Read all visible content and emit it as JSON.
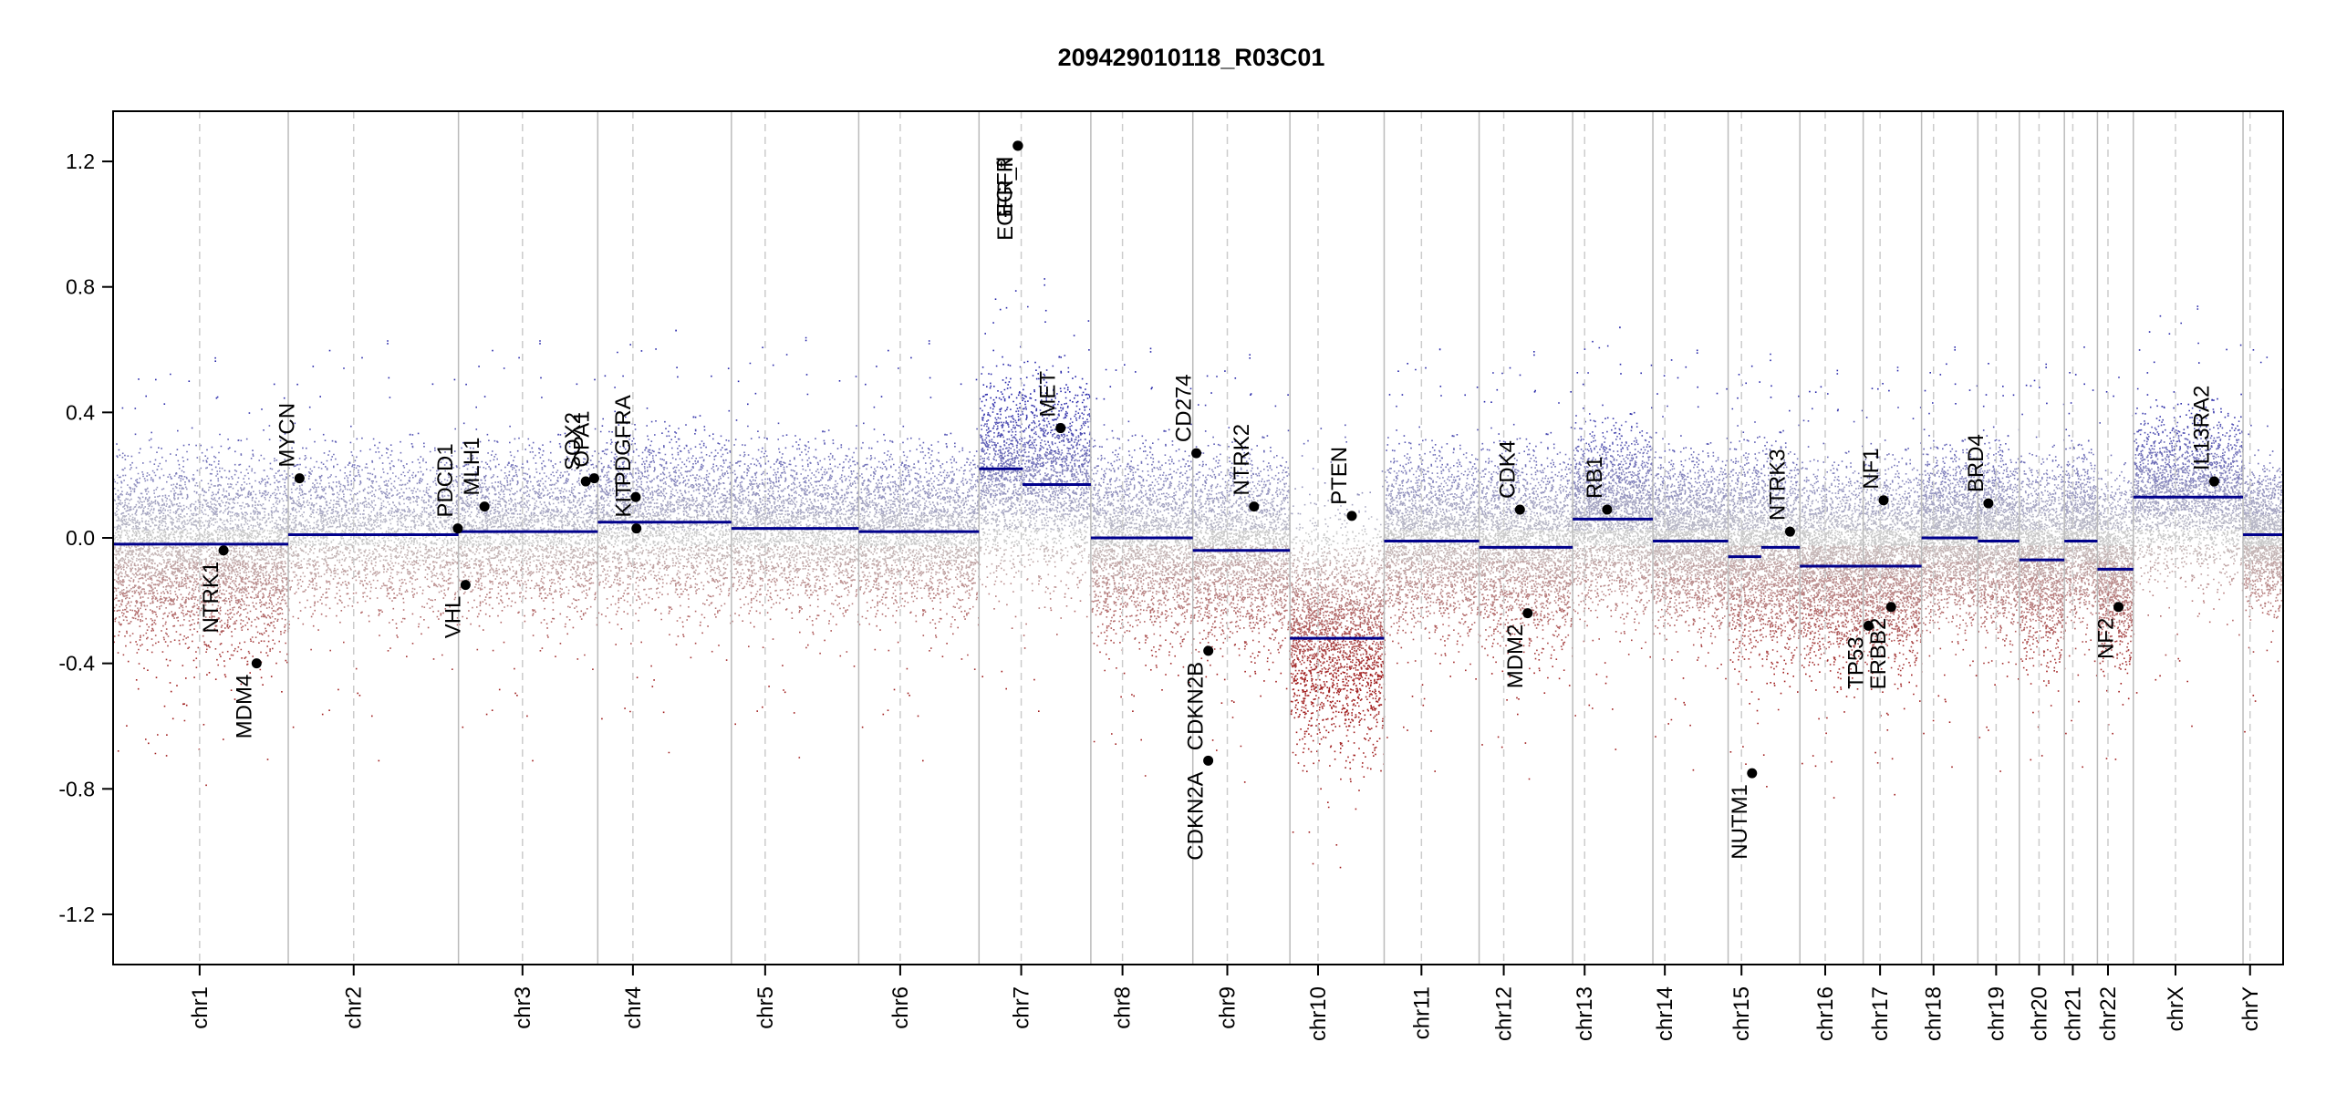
{
  "chart_data": {
    "type": "scatter",
    "title": "209429010118_R03C01",
    "xlabel": "",
    "ylabel": "",
    "ylim": [
      -1.36,
      1.36
    ],
    "y_ticks": [
      "1.2",
      "0.8",
      "0.4",
      "0.0",
      "-0.4",
      "-0.8",
      "-1.2"
    ],
    "y_tick_values": [
      1.2,
      0.8,
      0.4,
      0.0,
      -0.4,
      -0.8,
      -1.2
    ],
    "grid": false,
    "colors": {
      "gain": "#1a1a9c",
      "loss": "#9c1a1a",
      "neutral": "#c8c8c8",
      "segment": "#00008b",
      "chromosome_border": "#bbbbbb",
      "centromere": "#cccccc",
      "gene_point": "#000000"
    },
    "chromosomes": [
      {
        "name": "chr1",
        "length": 249,
        "centromere": 123
      },
      {
        "name": "chr2",
        "length": 242,
        "centromere": 93
      },
      {
        "name": "chr3",
        "length": 198,
        "centromere": 91
      },
      {
        "name": "chr4",
        "length": 190,
        "centromere": 50
      },
      {
        "name": "chr5",
        "length": 181,
        "centromere": 48
      },
      {
        "name": "chr6",
        "length": 171,
        "centromere": 59
      },
      {
        "name": "chr7",
        "length": 159,
        "centromere": 60
      },
      {
        "name": "chr8",
        "length": 145,
        "centromere": 45
      },
      {
        "name": "chr9",
        "length": 138,
        "centromere": 49
      },
      {
        "name": "chr10",
        "length": 134,
        "centromere": 40
      },
      {
        "name": "chr11",
        "length": 135,
        "centromere": 53
      },
      {
        "name": "chr12",
        "length": 133,
        "centromere": 35
      },
      {
        "name": "chr13",
        "length": 114,
        "centromere": 17
      },
      {
        "name": "chr14",
        "length": 107,
        "centromere": 17
      },
      {
        "name": "chr15",
        "length": 102,
        "centromere": 19
      },
      {
        "name": "chr16",
        "length": 90,
        "centromere": 36
      },
      {
        "name": "chr17",
        "length": 83,
        "centromere": 24
      },
      {
        "name": "chr18",
        "length": 80,
        "centromere": 17
      },
      {
        "name": "chr19",
        "length": 59,
        "centromere": 26
      },
      {
        "name": "chr20",
        "length": 64,
        "centromere": 28
      },
      {
        "name": "chr21",
        "length": 47,
        "centromere": 12
      },
      {
        "name": "chr22",
        "length": 51,
        "centromere": 15
      },
      {
        "name": "chrX",
        "length": 156,
        "centromere": 60
      },
      {
        "name": "chrY",
        "length": 57,
        "centromere": 10
      }
    ],
    "segments": [
      {
        "chrom": "chr1",
        "start": 0,
        "end": 249,
        "value": -0.02
      },
      {
        "chrom": "chr2",
        "start": 0,
        "end": 242,
        "value": 0.01
      },
      {
        "chrom": "chr3",
        "start": 0,
        "end": 198,
        "value": 0.02
      },
      {
        "chrom": "chr4",
        "start": 0,
        "end": 190,
        "value": 0.05
      },
      {
        "chrom": "chr5",
        "start": 0,
        "end": 181,
        "value": 0.03
      },
      {
        "chrom": "chr6",
        "start": 0,
        "end": 171,
        "value": 0.02
      },
      {
        "chrom": "chr7",
        "start": 0,
        "end": 62,
        "value": 0.22
      },
      {
        "chrom": "chr7",
        "start": 62,
        "end": 159,
        "value": 0.17
      },
      {
        "chrom": "chr8",
        "start": 0,
        "end": 145,
        "value": 0.0
      },
      {
        "chrom": "chr9",
        "start": 0,
        "end": 138,
        "value": -0.04
      },
      {
        "chrom": "chr10",
        "start": 0,
        "end": 134,
        "value": -0.32
      },
      {
        "chrom": "chr11",
        "start": 0,
        "end": 135,
        "value": -0.01
      },
      {
        "chrom": "chr12",
        "start": 0,
        "end": 133,
        "value": -0.03
      },
      {
        "chrom": "chr13",
        "start": 0,
        "end": 114,
        "value": 0.06
      },
      {
        "chrom": "chr14",
        "start": 0,
        "end": 107,
        "value": -0.01
      },
      {
        "chrom": "chr15",
        "start": 0,
        "end": 47,
        "value": -0.06
      },
      {
        "chrom": "chr15",
        "start": 47,
        "end": 102,
        "value": -0.03
      },
      {
        "chrom": "chr16",
        "start": 0,
        "end": 90,
        "value": -0.09
      },
      {
        "chrom": "chr17",
        "start": 0,
        "end": 83,
        "value": -0.09
      },
      {
        "chrom": "chr18",
        "start": 0,
        "end": 80,
        "value": 0.0
      },
      {
        "chrom": "chr19",
        "start": 0,
        "end": 59,
        "value": -0.01
      },
      {
        "chrom": "chr20",
        "start": 0,
        "end": 64,
        "value": -0.07
      },
      {
        "chrom": "chr21",
        "start": 0,
        "end": 47,
        "value": -0.01
      },
      {
        "chrom": "chr22",
        "start": 0,
        "end": 51,
        "value": -0.1
      },
      {
        "chrom": "chrX",
        "start": 0,
        "end": 156,
        "value": 0.13
      },
      {
        "chrom": "chrY",
        "start": 0,
        "end": 57,
        "value": 0.01
      }
    ],
    "genes": [
      {
        "name": "NTRK1",
        "chrom": "chr1",
        "pos": 157,
        "value": -0.04,
        "label_side": "below"
      },
      {
        "name": "MDM4",
        "chrom": "chr1",
        "pos": 204,
        "value": -0.4,
        "label_side": "below"
      },
      {
        "name": "MYCN",
        "chrom": "chr2",
        "pos": 16,
        "value": 0.19,
        "label_side": "above"
      },
      {
        "name": "PDCD1",
        "chrom": "chr2",
        "pos": 241,
        "value": 0.03,
        "label_side": "above"
      },
      {
        "name": "VHL",
        "chrom": "chr3",
        "pos": 10,
        "value": -0.15,
        "label_side": "below"
      },
      {
        "name": "MLH1",
        "chrom": "chr3",
        "pos": 37,
        "value": 0.1,
        "label_side": "above"
      },
      {
        "name": "SOX2",
        "chrom": "chr3",
        "pos": 181,
        "value": 0.18,
        "label_side": "above"
      },
      {
        "name": "OPA1",
        "chrom": "chr3",
        "pos": 193,
        "value": 0.19,
        "label_side": "above"
      },
      {
        "name": "KIT",
        "chrom": "chr4",
        "pos": 55,
        "value": 0.03,
        "label_side": "above"
      },
      {
        "name": "PDGFRA",
        "chrom": "chr4",
        "pos": 54,
        "value": 0.13,
        "label_side": "above"
      },
      {
        "name": "EGFR",
        "chrom": "chr7",
        "pos": 55,
        "value": 1.25,
        "label_side": "below"
      },
      {
        "name": "EGFR_fl",
        "chrom": "chr7",
        "pos": 55.5,
        "value": 1.25,
        "label_side": "below"
      },
      {
        "name": "MET",
        "chrom": "chr7",
        "pos": 116,
        "value": 0.35,
        "label_side": "above"
      },
      {
        "name": "CD274",
        "chrom": "chr9",
        "pos": 5,
        "value": 0.27,
        "label_side": "above"
      },
      {
        "name": "CDKN2A",
        "chrom": "chr9",
        "pos": 21.9,
        "value": -0.71,
        "label_side": "below"
      },
      {
        "name": "CDKN2B",
        "chrom": "chr9",
        "pos": 22.0,
        "value": -0.36,
        "label_side": "below"
      },
      {
        "name": "NTRK2",
        "chrom": "chr9",
        "pos": 87,
        "value": 0.1,
        "label_side": "above"
      },
      {
        "name": "PTEN",
        "chrom": "chr10",
        "pos": 88,
        "value": 0.07,
        "label_side": "above"
      },
      {
        "name": "CDK4",
        "chrom": "chr12",
        "pos": 58,
        "value": 0.09,
        "label_side": "above"
      },
      {
        "name": "MDM2",
        "chrom": "chr12",
        "pos": 69,
        "value": -0.24,
        "label_side": "below"
      },
      {
        "name": "RB1",
        "chrom": "chr13",
        "pos": 49,
        "value": 0.09,
        "label_side": "above"
      },
      {
        "name": "NUTM1",
        "chrom": "chr15",
        "pos": 34,
        "value": -0.75,
        "label_side": "below"
      },
      {
        "name": "NTRK3",
        "chrom": "chr15",
        "pos": 88,
        "value": 0.02,
        "label_side": "above"
      },
      {
        "name": "NF1",
        "chrom": "chr17",
        "pos": 29,
        "value": 0.12,
        "label_side": "above"
      },
      {
        "name": "TP53",
        "chrom": "chr17",
        "pos": 7.5,
        "value": -0.28,
        "label_side": "below"
      },
      {
        "name": "ERBB2",
        "chrom": "chr17",
        "pos": 39.7,
        "value": -0.22,
        "label_side": "below"
      },
      {
        "name": "BRD4",
        "chrom": "chr19",
        "pos": 15,
        "value": 0.11,
        "label_side": "above"
      },
      {
        "name": "NF2",
        "chrom": "chr22",
        "pos": 30,
        "value": -0.22,
        "label_side": "below"
      },
      {
        "name": "IL13RA2",
        "chrom": "chrX",
        "pos": 115,
        "value": 0.18,
        "label_side": "above"
      }
    ],
    "scatter_profiles": [
      {
        "chrom": "chr1",
        "mean": -0.05,
        "spread": 0.14
      },
      {
        "chrom": "chr2",
        "mean": 0.02,
        "spread": 0.12
      },
      {
        "chrom": "chr3",
        "mean": 0.02,
        "spread": 0.12
      },
      {
        "chrom": "chr4",
        "mean": 0.05,
        "spread": 0.13
      },
      {
        "chrom": "chr5",
        "mean": 0.03,
        "spread": 0.12
      },
      {
        "chrom": "chr6",
        "mean": 0.02,
        "spread": 0.12
      },
      {
        "chrom": "chr7",
        "mean": 0.19,
        "spread": 0.15
      },
      {
        "chrom": "chr8",
        "mean": -0.02,
        "spread": 0.14
      },
      {
        "chrom": "chr9",
        "mean": -0.04,
        "spread": 0.14
      },
      {
        "chrom": "chr10",
        "mean": -0.3,
        "spread": 0.17
      },
      {
        "chrom": "chr11",
        "mean": -0.01,
        "spread": 0.13
      },
      {
        "chrom": "chr12",
        "mean": -0.03,
        "spread": 0.14
      },
      {
        "chrom": "chr13",
        "mean": 0.06,
        "spread": 0.13
      },
      {
        "chrom": "chr14",
        "mean": -0.01,
        "spread": 0.12
      },
      {
        "chrom": "chr15",
        "mean": -0.05,
        "spread": 0.15
      },
      {
        "chrom": "chr16",
        "mean": -0.09,
        "spread": 0.14
      },
      {
        "chrom": "chr17",
        "mean": -0.08,
        "spread": 0.14
      },
      {
        "chrom": "chr18",
        "mean": 0.0,
        "spread": 0.12
      },
      {
        "chrom": "chr19",
        "mean": -0.01,
        "spread": 0.13
      },
      {
        "chrom": "chr20",
        "mean": -0.07,
        "spread": 0.14
      },
      {
        "chrom": "chr21",
        "mean": 0.0,
        "spread": 0.12
      },
      {
        "chrom": "chr22",
        "mean": -0.1,
        "spread": 0.13
      },
      {
        "chrom": "chrX",
        "mean": 0.13,
        "spread": 0.12
      },
      {
        "chrom": "chrY",
        "mean": 0.0,
        "spread": 0.1
      }
    ]
  }
}
